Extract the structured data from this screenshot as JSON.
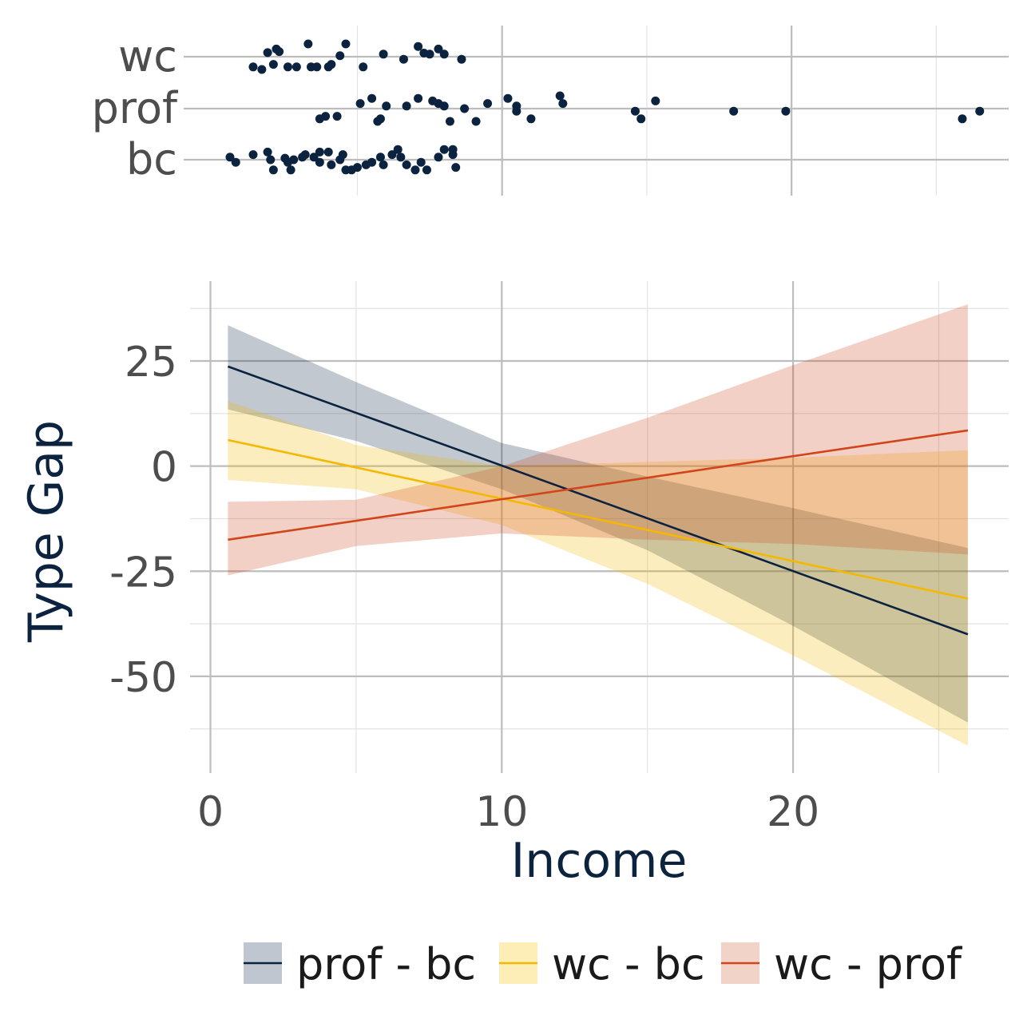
{
  "colors": {
    "navy": "#0c2340",
    "gold": "#f5b800",
    "rust": "#d1451a",
    "band_navy": "#bfc6cf",
    "band_gold": "#fdeeb8",
    "band_rust": "#f2d3c7",
    "grid_major": "#bdbdbd",
    "grid_minor": "#e3e3e3"
  },
  "chart_data": [
    {
      "type": "scatter",
      "panel": "top",
      "categories": [
        "bc",
        "prof",
        "wc"
      ],
      "xlim": [
        -1,
        27.5
      ],
      "x_major_ticks": [
        10,
        20
      ],
      "x_minor_ticks": [
        5,
        15,
        25
      ],
      "grid": true,
      "series": [
        {
          "category": "wc",
          "points": [
            [
              1.4,
              -0.2
            ],
            [
              1.7,
              -0.25
            ],
            [
              1.9,
              0.08
            ],
            [
              2.2,
              0.15
            ],
            [
              2.3,
              0.1
            ],
            [
              2.1,
              -0.15
            ],
            [
              2.6,
              -0.2
            ],
            [
              2.9,
              -0.2
            ],
            [
              3.3,
              0.25
            ],
            [
              3.4,
              -0.2
            ],
            [
              3.6,
              -0.2
            ],
            [
              4.0,
              -0.2
            ],
            [
              4.1,
              -0.15
            ],
            [
              4.4,
              0.02
            ],
            [
              4.6,
              0.25
            ],
            [
              5.2,
              -0.2
            ],
            [
              5.9,
              0.05
            ],
            [
              6.6,
              -0.05
            ],
            [
              7.1,
              0.2
            ],
            [
              7.3,
              0.07
            ],
            [
              7.5,
              0.05
            ],
            [
              7.8,
              0.15
            ],
            [
              8.0,
              0.05
            ],
            [
              8.6,
              -0.05
            ]
          ]
        },
        {
          "category": "prof",
          "points": [
            [
              3.7,
              -0.2
            ],
            [
              3.9,
              -0.15
            ],
            [
              4.3,
              -0.15
            ],
            [
              5.1,
              0.1
            ],
            [
              5.5,
              0.2
            ],
            [
              5.7,
              -0.25
            ],
            [
              5.8,
              -0.2
            ],
            [
              6.0,
              0.05
            ],
            [
              6.7,
              0.05
            ],
            [
              7.1,
              0.2
            ],
            [
              7.6,
              0.15
            ],
            [
              7.8,
              0.1
            ],
            [
              8.0,
              0.05
            ],
            [
              8.2,
              -0.25
            ],
            [
              8.7,
              0
            ],
            [
              9.1,
              -0.25
            ],
            [
              9.5,
              0.1
            ],
            [
              10.2,
              0.2
            ],
            [
              10.5,
              -0.05
            ],
            [
              10.5,
              0.05
            ],
            [
              11.0,
              -0.2
            ],
            [
              12.0,
              0.25
            ],
            [
              12.1,
              0.1
            ],
            [
              14.6,
              -0.05
            ],
            [
              14.8,
              -0.2
            ],
            [
              15.3,
              0.15
            ],
            [
              18.0,
              -0.05
            ],
            [
              19.8,
              -0.05
            ],
            [
              25.9,
              -0.2
            ],
            [
              26.5,
              -0.05
            ]
          ]
        },
        {
          "category": "bc",
          "points": [
            [
              0.6,
              0.05
            ],
            [
              0.8,
              -0.05
            ],
            [
              1.4,
              0.1
            ],
            [
              1.9,
              0.15
            ],
            [
              2.0,
              0
            ],
            [
              2.1,
              -0.2
            ],
            [
              2.5,
              0.03
            ],
            [
              2.6,
              -0.05
            ],
            [
              2.7,
              -0.2
            ],
            [
              2.8,
              0
            ],
            [
              3.1,
              0.05
            ],
            [
              3.2,
              0.1
            ],
            [
              3.5,
              0.05
            ],
            [
              3.7,
              0.15
            ],
            [
              3.7,
              -0.05
            ],
            [
              4.0,
              0.15
            ],
            [
              4.1,
              -0.1
            ],
            [
              4.4,
              0
            ],
            [
              4.5,
              0.1
            ],
            [
              4.6,
              -0.2
            ],
            [
              4.8,
              -0.2
            ],
            [
              5.0,
              -0.15
            ],
            [
              5.3,
              -0.1
            ],
            [
              5.5,
              -0.05
            ],
            [
              5.8,
              0.05
            ],
            [
              5.9,
              -0.1
            ],
            [
              6.2,
              0.1
            ],
            [
              6.4,
              0.2
            ],
            [
              6.5,
              0.05
            ],
            [
              6.7,
              -0.1
            ],
            [
              7.0,
              -0.2
            ],
            [
              7.2,
              -0.05
            ],
            [
              7.4,
              -0.2
            ],
            [
              7.8,
              0.05
            ],
            [
              8.0,
              0.2
            ],
            [
              8.3,
              0.1
            ],
            [
              8.3,
              0.2
            ],
            [
              8.4,
              -0.15
            ]
          ]
        }
      ]
    },
    {
      "type": "line",
      "panel": "bottom",
      "xlabel": "Income",
      "ylabel": "Type Gap",
      "xlim": [
        -0.7,
        27.4
      ],
      "ylim": [
        -73,
        44
      ],
      "x_major_ticks": [
        0,
        10,
        20
      ],
      "x_minor_ticks": [
        5,
        15,
        25
      ],
      "y_major_ticks": [
        -50,
        -25,
        0,
        25
      ],
      "y_minor_ticks": [
        -62.5,
        -37.5,
        -12.5,
        12.5,
        37.5
      ],
      "grid": true,
      "legend_position": "bottom",
      "series": [
        {
          "name": "prof - bc",
          "color_key": "navy",
          "band_key": "band_navy",
          "x": [
            0.6,
            26.0
          ],
          "y": [
            23.7,
            -40.0
          ],
          "ci_x": [
            0.6,
            5,
            10,
            15,
            20,
            26.0
          ],
          "ci_lower": [
            13.5,
            6.0,
            -5.5,
            -20.0,
            -38.0,
            -61.0
          ],
          "ci_upper": [
            33.5,
            20.0,
            5.5,
            -2.5,
            -10.0,
            -19.5
          ]
        },
        {
          "name": "wc - bc",
          "color_key": "gold",
          "band_key": "band_gold",
          "x": [
            0.6,
            26.0
          ],
          "y": [
            6.2,
            -31.5
          ],
          "ci_x": [
            0.6,
            5,
            10,
            15,
            20,
            26.0
          ],
          "ci_lower": [
            -3.3,
            -5.5,
            -14.0,
            -28.0,
            -45.0,
            -66.5
          ],
          "ci_upper": [
            15.5,
            5.0,
            0.0,
            1.0,
            2.0,
            3.8
          ]
        },
        {
          "name": "wc - prof",
          "color_key": "rust",
          "band_key": "band_rust",
          "x": [
            0.6,
            26.0
          ],
          "y": [
            -17.5,
            8.5
          ],
          "ci_x": [
            0.6,
            5,
            10,
            15,
            20,
            26.0
          ],
          "ci_lower": [
            -26.0,
            -19.0,
            -16.0,
            -17.5,
            -18.5,
            -21.0
          ],
          "ci_upper": [
            -8.5,
            -8.0,
            0.0,
            11.5,
            24.0,
            38.5
          ]
        }
      ]
    }
  ]
}
